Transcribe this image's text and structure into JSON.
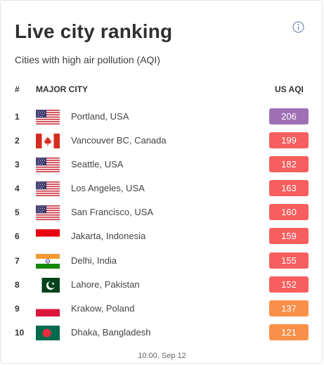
{
  "widget": {
    "title": "Live city ranking",
    "subtitle": "Cities with high air pollution (AQI)",
    "info_icon": "info-circle-icon",
    "timestamp": "10:00, Sep 12"
  },
  "table": {
    "headers": {
      "rank": "#",
      "city": "MAJOR CITY",
      "aqi": "US AQI"
    },
    "rows": [
      {
        "rank": "1",
        "city": "Portland, USA",
        "aqi": "206",
        "flag": "usa",
        "color": "#a070b6"
      },
      {
        "rank": "2",
        "city": "Vancouver BC, Canada",
        "aqi": "199",
        "flag": "canada",
        "color": "#f65e5f"
      },
      {
        "rank": "3",
        "city": "Seattle, USA",
        "aqi": "182",
        "flag": "usa",
        "color": "#f65e5f"
      },
      {
        "rank": "4",
        "city": "Los Angeles, USA",
        "aqi": "163",
        "flag": "usa",
        "color": "#f65e5f"
      },
      {
        "rank": "5",
        "city": "San Francisco, USA",
        "aqi": "160",
        "flag": "usa",
        "color": "#f65e5f"
      },
      {
        "rank": "6",
        "city": "Jakarta, Indonesia",
        "aqi": "159",
        "flag": "indonesia",
        "color": "#f65e5f"
      },
      {
        "rank": "7",
        "city": "Delhi, India",
        "aqi": "155",
        "flag": "india",
        "color": "#f65e5f"
      },
      {
        "rank": "8",
        "city": "Lahore, Pakistan",
        "aqi": "152",
        "flag": "pakistan",
        "color": "#f65e5f"
      },
      {
        "rank": "9",
        "city": "Krakow, Poland",
        "aqi": "137",
        "flag": "poland",
        "color": "#f99049"
      },
      {
        "rank": "10",
        "city": "Dhaka, Bangladesh",
        "aqi": "121",
        "flag": "bangladesh",
        "color": "#f99049"
      }
    ]
  }
}
